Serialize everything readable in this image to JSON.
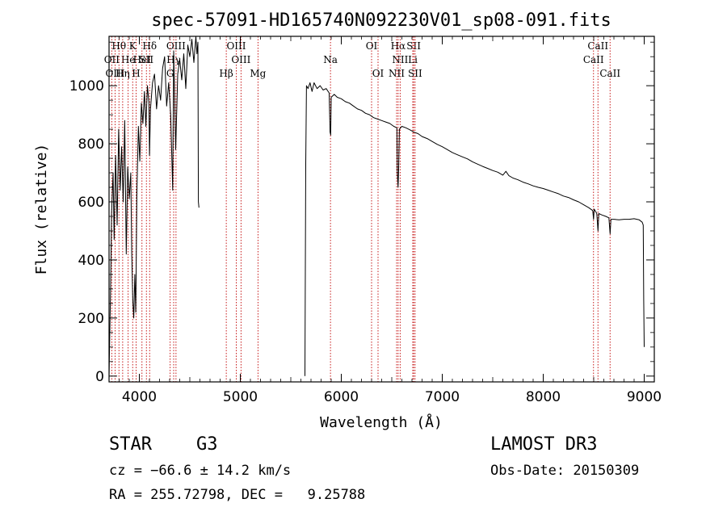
{
  "chart_data": {
    "type": "line",
    "title": "spec-57091-HD165740N092230V01_sp08-091.fits",
    "xlabel": "Wavelength (Å)",
    "ylabel": "Flux (relative)",
    "xlim": [
      3700,
      9100
    ],
    "ylim": [
      -20,
      1170
    ],
    "xticks": [
      4000,
      5000,
      6000,
      7000,
      8000,
      9000
    ],
    "yticks": [
      0,
      200,
      400,
      600,
      800,
      1000
    ],
    "series": [
      {
        "name": "flux",
        "segments": [
          [
            [
              3700,
              0
            ],
            [
              3715,
              300
            ],
            [
              3725,
              560
            ],
            [
              3740,
              700
            ],
            [
              3750,
              470
            ],
            [
              3765,
              760
            ],
            [
              3780,
              520
            ],
            [
              3795,
              850
            ],
            [
              3810,
              640
            ],
            [
              3825,
              790
            ],
            [
              3840,
              600
            ],
            [
              3855,
              880
            ],
            [
              3870,
              420
            ],
            [
              3885,
              720
            ],
            [
              3900,
              610
            ],
            [
              3915,
              700
            ],
            [
              3925,
              420
            ],
            [
              3935,
              260
            ],
            [
              3945,
              200
            ],
            [
              3955,
              350
            ],
            [
              3965,
              220
            ],
            [
              3975,
              620
            ],
            [
              3990,
              860
            ],
            [
              4005,
              740
            ],
            [
              4020,
              940
            ],
            [
              4035,
              870
            ],
            [
              4050,
              980
            ],
            [
              4065,
              860
            ],
            [
              4080,
              1000
            ],
            [
              4095,
              940
            ],
            [
              4101,
              760
            ],
            [
              4110,
              920
            ],
            [
              4130,
              1010
            ],
            [
              4150,
              1040
            ],
            [
              4170,
              920
            ],
            [
              4190,
              1000
            ],
            [
              4210,
              950
            ],
            [
              4230,
              1060
            ],
            [
              4250,
              1100
            ],
            [
              4270,
              930
            ],
            [
              4290,
              1010
            ],
            [
              4310,
              900
            ],
            [
              4330,
              640
            ],
            [
              4340,
              1120
            ],
            [
              4360,
              780
            ],
            [
              4380,
              1040
            ],
            [
              4400,
              1090
            ],
            [
              4420,
              1020
            ],
            [
              4440,
              1110
            ],
            [
              4460,
              990
            ],
            [
              4480,
              1140
            ],
            [
              4500,
              1100
            ],
            [
              4520,
              1160
            ],
            [
              4540,
              1080
            ],
            [
              4560,
              1170
            ],
            [
              4570,
              1110
            ],
            [
              4580,
              1150
            ],
            [
              4585,
              600
            ],
            [
              4590,
              580
            ]
          ],
          [
            [
              5640,
              0
            ],
            [
              5648,
              730
            ],
            [
              5655,
              1000
            ],
            [
              5670,
              990
            ],
            [
              5690,
              1010
            ],
            [
              5710,
              980
            ],
            [
              5730,
              1010
            ],
            [
              5760,
              990
            ],
            [
              5790,
              1000
            ],
            [
              5820,
              985
            ],
            [
              5850,
              990
            ],
            [
              5880,
              975
            ],
            [
              5889,
              840
            ],
            [
              5895,
              830
            ],
            [
              5900,
              960
            ],
            [
              5930,
              970
            ],
            [
              5960,
              960
            ],
            [
              6000,
              955
            ],
            [
              6040,
              945
            ],
            [
              6080,
              940
            ],
            [
              6120,
              930
            ],
            [
              6160,
              920
            ],
            [
              6200,
              915
            ],
            [
              6240,
              905
            ],
            [
              6280,
              900
            ],
            [
              6320,
              890
            ],
            [
              6360,
              885
            ],
            [
              6400,
              880
            ],
            [
              6440,
              875
            ],
            [
              6480,
              870
            ],
            [
              6520,
              860
            ],
            [
              6550,
              855
            ],
            [
              6555,
              700
            ],
            [
              6562,
              650
            ],
            [
              6568,
              710
            ],
            [
              6575,
              850
            ],
            [
              6600,
              860
            ],
            [
              6640,
              855
            ],
            [
              6680,
              848
            ],
            [
              6720,
              840
            ],
            [
              6760,
              835
            ],
            [
              6800,
              825
            ],
            [
              6850,
              818
            ],
            [
              6900,
              808
            ],
            [
              6950,
              798
            ],
            [
              7000,
              790
            ],
            [
              7050,
              780
            ],
            [
              7100,
              770
            ],
            [
              7150,
              762
            ],
            [
              7200,
              755
            ],
            [
              7250,
              748
            ],
            [
              7300,
              738
            ],
            [
              7350,
              730
            ],
            [
              7400,
              722
            ],
            [
              7450,
              715
            ],
            [
              7500,
              708
            ],
            [
              7550,
              702
            ],
            [
              7600,
              692
            ],
            [
              7630,
              705
            ],
            [
              7660,
              690
            ],
            [
              7700,
              682
            ],
            [
              7750,
              676
            ],
            [
              7800,
              668
            ],
            [
              7850,
              662
            ],
            [
              7900,
              655
            ],
            [
              7950,
              650
            ],
            [
              8000,
              646
            ],
            [
              8050,
              640
            ],
            [
              8100,
              634
            ],
            [
              8150,
              628
            ],
            [
              8200,
              620
            ],
            [
              8250,
              615
            ],
            [
              8300,
              607
            ],
            [
              8350,
              600
            ],
            [
              8400,
              590
            ],
            [
              8450,
              580
            ],
            [
              8490,
              570
            ],
            [
              8498,
              540
            ],
            [
              8505,
              575
            ],
            [
              8530,
              560
            ],
            [
              8542,
              500
            ],
            [
              8550,
              560
            ],
            [
              8580,
              555
            ],
            [
              8620,
              550
            ],
            [
              8650,
              545
            ],
            [
              8662,
              490
            ],
            [
              8670,
              540
            ],
            [
              8700,
              540
            ],
            [
              8750,
              538
            ],
            [
              8800,
              540
            ],
            [
              8850,
              540
            ],
            [
              8900,
              542
            ],
            [
              8950,
              538
            ],
            [
              8980,
              530
            ],
            [
              8990,
              520
            ],
            [
              8995,
              260
            ],
            [
              9000,
              100
            ]
          ]
        ]
      }
    ],
    "lines": [
      {
        "label": "Hθ",
        "wavelength": 3798,
        "row": 0
      },
      {
        "label": "K",
        "wavelength": 3934,
        "row": 0
      },
      {
        "label": "Hδ",
        "wavelength": 4102,
        "row": 0
      },
      {
        "label": "OIII",
        "wavelength": 4363,
        "row": 0
      },
      {
        "label": "OIII",
        "wavelength": 4960,
        "row": 0
      },
      {
        "label": "OI",
        "wavelength": 6300,
        "row": 0
      },
      {
        "label": "Hα",
        "wavelength": 6563,
        "row": 0
      },
      {
        "label": "SII",
        "wavelength": 6717,
        "row": 0
      },
      {
        "label": "CaII",
        "wavelength": 8542,
        "row": 0
      },
      {
        "label": "OII",
        "wavelength": 3727,
        "row": 1
      },
      {
        "label": "He",
        "wavelength": 3889,
        "row": 1
      },
      {
        "label": "HeI",
        "wavelength": 4026,
        "row": 1
      },
      {
        "label": "SII",
        "wavelength": 4070,
        "row": 1
      },
      {
        "label": "Hγ",
        "wavelength": 4340,
        "row": 1
      },
      {
        "label": "OIII",
        "wavelength": 5007,
        "row": 1
      },
      {
        "label": "Na",
        "wavelength": 5893,
        "row": 1
      },
      {
        "label": "NII",
        "wavelength": 6583,
        "row": 1
      },
      {
        "label": "Li",
        "wavelength": 6708,
        "row": 1
      },
      {
        "label": "CaII",
        "wavelength": 8498,
        "row": 1
      },
      {
        "label": "OIII",
        "wavelength": 3760,
        "row": 2
      },
      {
        "label": "Hη",
        "wavelength": 3835,
        "row": 2
      },
      {
        "label": "H",
        "wavelength": 3968,
        "row": 2
      },
      {
        "label": "G",
        "wavelength": 4305,
        "row": 2
      },
      {
        "label": "Hβ",
        "wavelength": 4861,
        "row": 2
      },
      {
        "label": "Mg",
        "wavelength": 5175,
        "row": 2
      },
      {
        "label": "OI",
        "wavelength": 6364,
        "row": 2
      },
      {
        "label": "NII",
        "wavelength": 6548,
        "row": 2
      },
      {
        "label": "SII",
        "wavelength": 6731,
        "row": 2
      },
      {
        "label": "CaII",
        "wavelength": 8662,
        "row": 2
      }
    ]
  },
  "info": {
    "object_class": "STAR",
    "subclass": "G3",
    "survey": "LAMOST DR3",
    "cz": "cz = −66.6 ± 14.2 km/s",
    "obs_date": "Obs-Date: 20150309",
    "radec": "RA = 255.72798, DEC =   9.25788"
  }
}
